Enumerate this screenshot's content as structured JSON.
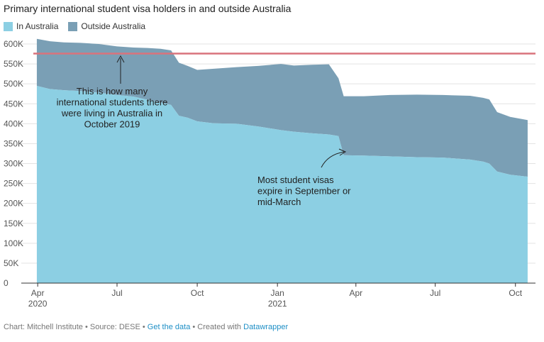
{
  "title": "Primary international student visa holders in and outside Australia",
  "legend": [
    {
      "label": "In Australia",
      "color": "#8ccfe3"
    },
    {
      "label": "Outside Australia",
      "color": "#7a9fb5"
    }
  ],
  "footer": {
    "chart_by": "Chart: Mitchell Institute",
    "source": "Source: DESE",
    "get_data": "Get the data",
    "created_with": "Created with",
    "tool": "Datawrapper",
    "sep": "•"
  },
  "chart_data": {
    "type": "area",
    "stacked": true,
    "x_axis": {
      "ticks": [
        "Apr",
        "Jul",
        "Oct",
        "Jan",
        "Apr",
        "Jul",
        "Oct"
      ],
      "year_labels": [
        "2020",
        "2021"
      ]
    },
    "y_axis": {
      "ylim": [
        0,
        600000
      ],
      "ticks": [
        "0",
        "50K",
        "100K",
        "150K",
        "200K",
        "250K",
        "300K",
        "350K",
        "400K",
        "450K",
        "500K",
        "550K",
        "600K"
      ]
    },
    "series": [
      {
        "name": "In Australia",
        "color": "#8ccfe3",
        "dates": [
          "2020-03-31",
          "2020-04-15",
          "2020-05-01",
          "2020-05-20",
          "2020-06-10",
          "2020-07-01",
          "2020-07-20",
          "2020-08-05",
          "2020-08-20",
          "2020-09-01",
          "2020-09-10",
          "2020-09-20",
          "2020-10-01",
          "2020-10-20",
          "2020-11-15",
          "2020-12-10",
          "2021-01-05",
          "2021-01-20",
          "2021-02-10",
          "2021-03-01",
          "2021-03-12",
          "2021-03-18",
          "2021-04-10",
          "2021-05-10",
          "2021-06-10",
          "2021-07-10",
          "2021-08-10",
          "2021-08-25",
          "2021-09-01",
          "2021-09-10",
          "2021-09-25",
          "2021-10-15"
        ],
        "values": [
          495000,
          487000,
          484000,
          482000,
          478000,
          472000,
          468000,
          460000,
          453000,
          447000,
          420000,
          415000,
          406000,
          401000,
          400000,
          393000,
          384000,
          380000,
          376000,
          373000,
          369000,
          321000,
          320000,
          318000,
          316000,
          315000,
          310000,
          305000,
          300000,
          280000,
          272000,
          267000
        ]
      },
      {
        "name": "Outside Australia",
        "color": "#7a9fb5",
        "dates": [
          "2020-03-31",
          "2020-04-15",
          "2020-05-01",
          "2020-05-20",
          "2020-06-10",
          "2020-07-01",
          "2020-07-20",
          "2020-08-05",
          "2020-08-20",
          "2020-09-01",
          "2020-09-10",
          "2020-09-20",
          "2020-10-01",
          "2020-10-20",
          "2020-11-15",
          "2020-12-10",
          "2021-01-05",
          "2021-01-20",
          "2021-02-10",
          "2021-03-01",
          "2021-03-12",
          "2021-03-18",
          "2021-04-10",
          "2021-05-10",
          "2021-06-10",
          "2021-07-10",
          "2021-08-10",
          "2021-08-25",
          "2021-09-01",
          "2021-09-10",
          "2021-09-25",
          "2021-10-15"
        ],
        "values": [
          118000,
          120000,
          120000,
          121000,
          122000,
          122000,
          123000,
          130000,
          135000,
          137000,
          133000,
          130000,
          129000,
          137000,
          142000,
          152000,
          166000,
          166000,
          172000,
          176000,
          145000,
          148000,
          149000,
          154000,
          157000,
          157000,
          160000,
          160000,
          161000,
          149000,
          145000,
          142000
        ]
      }
    ],
    "reference_line": {
      "value": 576000,
      "color": "#d9737c"
    },
    "annotations": [
      {
        "text": [
          "This is how many",
          "international students there",
          "were living in Australia in",
          "October 2019"
        ]
      },
      {
        "text": [
          "Most student visas",
          "expire in September or",
          "mid-March"
        ]
      }
    ]
  }
}
